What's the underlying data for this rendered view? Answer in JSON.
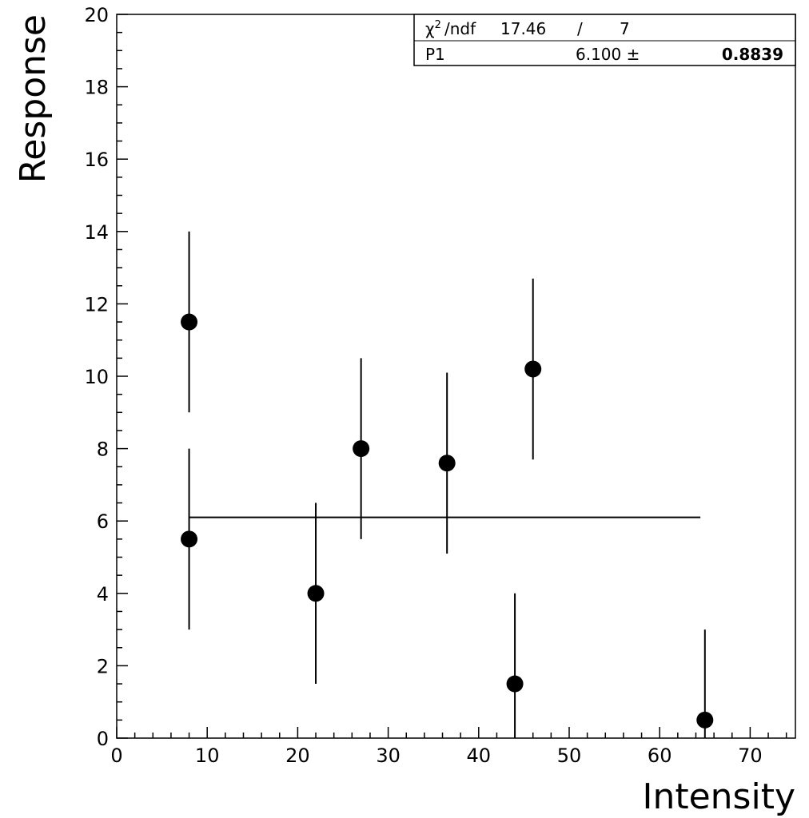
{
  "chart_data": {
    "type": "scatter",
    "xlabel": "Intensity",
    "ylabel": "Response",
    "xlim": [
      0,
      75
    ],
    "ylim": [
      0,
      20
    ],
    "x_ticks": [
      0,
      10,
      20,
      30,
      40,
      50,
      60,
      70
    ],
    "y_ticks": [
      0,
      2,
      4,
      6,
      8,
      10,
      12,
      14,
      16,
      18,
      20
    ],
    "grid": false,
    "points": [
      {
        "x": 8,
        "y": 11.5,
        "err": 2.5
      },
      {
        "x": 8,
        "y": 5.5,
        "err": 2.5
      },
      {
        "x": 22,
        "y": 4.0,
        "err": 2.5
      },
      {
        "x": 27,
        "y": 8.0,
        "err": 2.5
      },
      {
        "x": 36.5,
        "y": 7.6,
        "err": 2.5
      },
      {
        "x": 44,
        "y": 1.5,
        "err": 2.5
      },
      {
        "x": 46,
        "y": 10.2,
        "err": 2.5
      },
      {
        "x": 65,
        "y": 0.5,
        "err": 2.5
      }
    ],
    "fit_line": {
      "x_start": 8,
      "x_end": 64.5,
      "y": 6.1
    },
    "stats_box": {
      "chi2_label": "/ndf",
      "chi2_value": "17.46",
      "chi2_sep": "/",
      "ndf_value": "7",
      "p1_label": "P1",
      "p1_value": "6.100 ±",
      "p1_error": "0.8839"
    }
  }
}
